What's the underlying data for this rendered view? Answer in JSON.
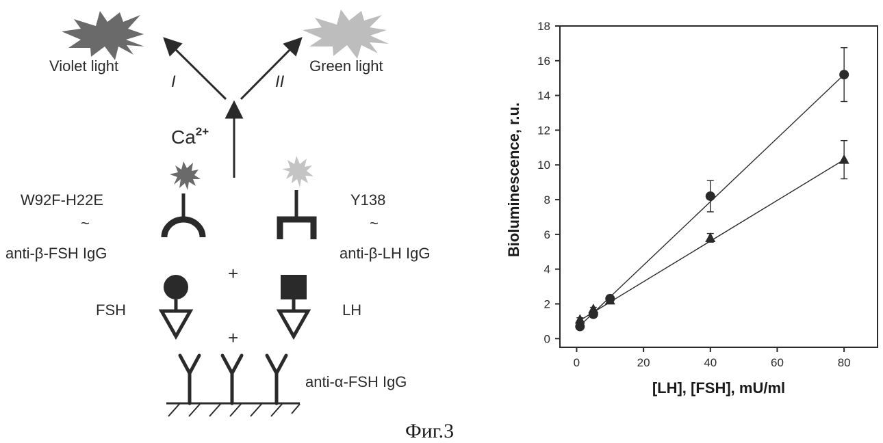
{
  "scheme": {
    "violet_light": "Violet light",
    "green_light": "Green light",
    "path_i": "I",
    "path_ii": "II",
    "calcium_base": "Ca",
    "calcium_sup": "2+",
    "label_left_protein": "W92F-H22E",
    "tilde": "~",
    "label_left_antibody": "anti-β-FSH IgG",
    "label_right_protein": "Y138",
    "label_right_antibody": "anti-β-LH IgG",
    "plus": "+",
    "fsh": "FSH",
    "lh": "LH",
    "capture_antibody": "anti-α-FSH IgG",
    "colors": {
      "violet_burst": "#6a6a6a",
      "green_burst": "#bdbdbd",
      "ink": "#2a2a2a"
    }
  },
  "caption": "Фиг.3",
  "chart_data": {
    "type": "scatter",
    "xlabel": "[LH], [FSH], mU/ml",
    "ylabel": "Bioluminescence, r.u.",
    "xlim": [
      -5,
      90
    ],
    "ylim": [
      -0.5,
      18
    ],
    "xticks": [
      0,
      20,
      40,
      60,
      80
    ],
    "yticks": [
      0,
      2,
      4,
      6,
      8,
      10,
      12,
      14,
      16,
      18
    ],
    "grid": false,
    "series": [
      {
        "marker": "circle",
        "x": [
          1,
          5,
          10,
          40,
          80
        ],
        "y": [
          0.7,
          1.4,
          2.3,
          8.2,
          15.2
        ],
        "yerr": [
          0.1,
          0.15,
          0.15,
          0.9,
          1.55
        ],
        "fit": [
          [
            1,
            0.75
          ],
          [
            80,
            15.2
          ]
        ]
      },
      {
        "marker": "triangle",
        "x": [
          1,
          5,
          10,
          40,
          80
        ],
        "y": [
          1.1,
          1.7,
          2.2,
          5.8,
          10.3
        ],
        "yerr": [
          0.1,
          0.1,
          0.1,
          0.25,
          1.1
        ],
        "fit": [
          [
            1,
            1.05
          ],
          [
            80,
            10.3
          ]
        ]
      }
    ]
  }
}
